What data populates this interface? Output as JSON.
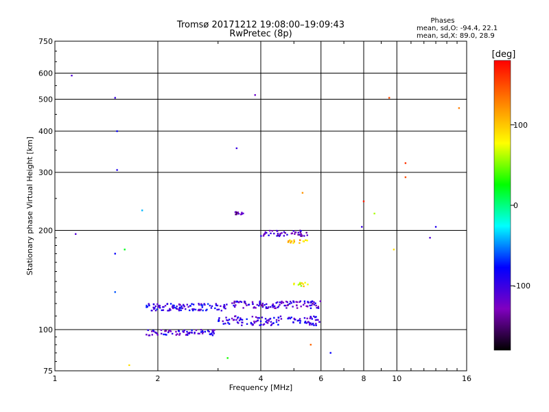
{
  "header": {
    "title_line1": "Tromsø 20171212 19:08:00–19:09:43",
    "title_line2": "RwPretec (8p)"
  },
  "stats": {
    "heading": "Phases",
    "line_o": "mean, sd,O: -94.4, 22.1",
    "line_x": "mean, sd,X:  89.0, 28.9"
  },
  "colorbar": {
    "unit": "[deg]",
    "range": [
      -180,
      180
    ],
    "ticks": [
      100,
      0,
      -100
    ],
    "tick_labels": [
      "100",
      "0",
      "-100"
    ],
    "colors": [
      "#000000",
      "#8000c0",
      "#0000ff",
      "#00ffff",
      "#00ff00",
      "#ffff00",
      "#ff8000",
      "#ff0000"
    ]
  },
  "chart_data": {
    "type": "scatter",
    "xlabel": "Frequency [MHz]",
    "ylabel": "Stationary phase Virtual Height [km]",
    "xscale": "log",
    "yscale": "log",
    "xlim": [
      1,
      16
    ],
    "ylim": [
      75,
      750
    ],
    "xticks": [
      1,
      2,
      4,
      6,
      8,
      10,
      16
    ],
    "xtick_labels": [
      "1",
      "2",
      "4",
      "6",
      "8",
      "10",
      "16"
    ],
    "yticks": [
      75,
      100,
      200,
      300,
      400,
      500,
      600,
      750
    ],
    "ytick_labels": [
      "75",
      "100",
      "200",
      "300",
      "400",
      "500",
      "600",
      "750"
    ],
    "grid": true,
    "color_by": "phase_deg",
    "traces": [
      {
        "x_range": [
          1.85,
          3.0
        ],
        "y_range": [
          96,
          100
        ],
        "phase": -105,
        "n": 70
      },
      {
        "x_range": [
          1.85,
          3.2
        ],
        "y_range": [
          114,
          120
        ],
        "phase": -95,
        "n": 110
      },
      {
        "x_range": [
          3.0,
          6.0
        ],
        "y_range": [
          103,
          110
        ],
        "phase": -100,
        "n": 120
      },
      {
        "x_range": [
          3.3,
          6.0
        ],
        "y_range": [
          116,
          122
        ],
        "phase": -110,
        "n": 110
      },
      {
        "x_range": [
          4.0,
          5.5
        ],
        "y_range": [
          192,
          200
        ],
        "phase": -115,
        "n": 45
      },
      {
        "x_range": [
          3.3,
          3.6
        ],
        "y_range": [
          223,
          228
        ],
        "phase": -130,
        "n": 12
      },
      {
        "x_range": [
          4.8,
          5.5
        ],
        "y_range": [
          183,
          187
        ],
        "phase": 100,
        "n": 15
      },
      {
        "x_range": [
          5.0,
          5.5
        ],
        "y_range": [
          135,
          139
        ],
        "phase": 80,
        "n": 12
      }
    ],
    "points": [
      {
        "x": 1.12,
        "y": 590,
        "phase": -110
      },
      {
        "x": 1.5,
        "y": 505,
        "phase": -100
      },
      {
        "x": 1.52,
        "y": 400,
        "phase": -80
      },
      {
        "x": 1.52,
        "y": 305,
        "phase": -90
      },
      {
        "x": 1.5,
        "y": 170,
        "phase": -80
      },
      {
        "x": 1.5,
        "y": 130,
        "phase": -60
      },
      {
        "x": 1.6,
        "y": 175,
        "phase": 20
      },
      {
        "x": 1.8,
        "y": 230,
        "phase": -40
      },
      {
        "x": 1.15,
        "y": 195,
        "phase": -110
      },
      {
        "x": 3.4,
        "y": 355,
        "phase": -100
      },
      {
        "x": 3.85,
        "y": 515,
        "phase": -120
      },
      {
        "x": 9.5,
        "y": 505,
        "phase": 150
      },
      {
        "x": 15.2,
        "y": 470,
        "phase": 130
      },
      {
        "x": 10.6,
        "y": 320,
        "phase": 160
      },
      {
        "x": 10.6,
        "y": 290,
        "phase": 150
      },
      {
        "x": 8.0,
        "y": 245,
        "phase": 170
      },
      {
        "x": 5.3,
        "y": 260,
        "phase": 120
      },
      {
        "x": 7.9,
        "y": 205,
        "phase": -100
      },
      {
        "x": 8.6,
        "y": 225,
        "phase": 60
      },
      {
        "x": 9.8,
        "y": 175,
        "phase": 90
      },
      {
        "x": 12.5,
        "y": 190,
        "phase": -110
      },
      {
        "x": 13.0,
        "y": 205,
        "phase": -90
      },
      {
        "x": 6.4,
        "y": 85,
        "phase": -80
      },
      {
        "x": 5.6,
        "y": 90,
        "phase": 140
      },
      {
        "x": 1.65,
        "y": 78,
        "phase": 90
      },
      {
        "x": 3.2,
        "y": 82,
        "phase": 30
      }
    ]
  }
}
